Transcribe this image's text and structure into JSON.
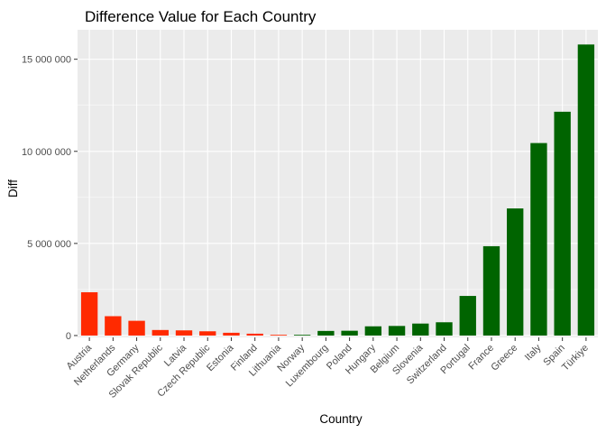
{
  "chart_data": {
    "type": "bar",
    "title": "Difference Value for Each Country",
    "xlabel": "Country",
    "ylabel": "Diff",
    "categories": [
      "Austria",
      "Netherlands",
      "Germany",
      "Slovak Republic",
      "Latvia",
      "Czech Republic",
      "Estonia",
      "Finland",
      "Lithuania",
      "Norway",
      "Luxembourg",
      "Poland",
      "Hungary",
      "Belgium",
      "Slovenia",
      "Switzerland",
      "Portugal",
      "France",
      "Greece",
      "Italy",
      "Spain",
      "Türkiye"
    ],
    "values": [
      -2350000,
      -1050000,
      -800000,
      -300000,
      -280000,
      -230000,
      -150000,
      -100000,
      -40000,
      40000,
      250000,
      260000,
      500000,
      520000,
      650000,
      720000,
      2150000,
      4850000,
      6900000,
      10450000,
      12150000,
      15800000
    ],
    "y_ticks": [
      0,
      5000000,
      10000000,
      15000000
    ],
    "y_tick_labels": [
      "0",
      "5 000 000",
      "10 000 000",
      "15 000 000"
    ],
    "ylim": [
      -100000,
      16600000
    ],
    "grid": true,
    "colors": {
      "negative": "#ff2a00",
      "positive": "#006400",
      "panel": "#ebebeb",
      "gridline": "#ffffff"
    }
  }
}
